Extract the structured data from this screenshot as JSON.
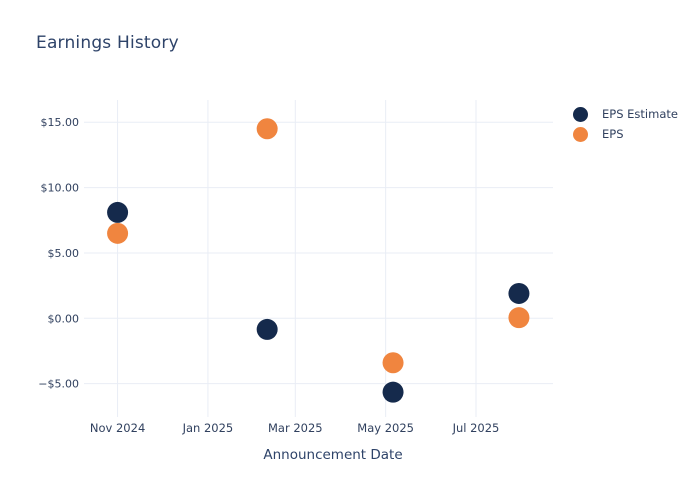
{
  "chart": {
    "title": "Earnings History",
    "xlabel": "Announcement Date"
  },
  "chart_data": {
    "type": "scatter",
    "title": "Earnings History",
    "xlabel": "Announcement Date",
    "ylabel": "",
    "legend_position": "right",
    "grid": true,
    "grid_color": "#e9edf5",
    "background_color": "#ffffff",
    "x_range": [
      "2024-10-10",
      "2025-08-22"
    ],
    "y_range": [
      -7.55,
      16.7
    ],
    "x_ticks": [
      {
        "date": "2024-11-01",
        "label": "Nov 2024"
      },
      {
        "date": "2025-01-01",
        "label": "Jan 2025"
      },
      {
        "date": "2025-03-01",
        "label": "Mar 2025"
      },
      {
        "date": "2025-05-01",
        "label": "May 2025"
      },
      {
        "date": "2025-07-01",
        "label": "Jul 2025"
      }
    ],
    "y_ticks": [
      {
        "value": 15,
        "label": "$15.00"
      },
      {
        "value": 10,
        "label": "$10.00"
      },
      {
        "value": 5,
        "label": "$5.00"
      },
      {
        "value": 0,
        "label": "$0.00"
      },
      {
        "value": -5,
        "label": "−$5.00"
      }
    ],
    "marker_diameter": 21,
    "series": [
      {
        "name": "EPS Estimate",
        "color": "#152a4c",
        "points": [
          {
            "date": "2024-11-01",
            "value": 8.1
          },
          {
            "date": "2025-02-10",
            "value": -0.85
          },
          {
            "date": "2025-05-06",
            "value": -5.65
          },
          {
            "date": "2025-07-30",
            "value": 1.9
          }
        ]
      },
      {
        "name": "EPS",
        "color": "#f0853f",
        "points": [
          {
            "date": "2024-11-01",
            "value": 6.5
          },
          {
            "date": "2025-02-10",
            "value": 14.5
          },
          {
            "date": "2025-05-06",
            "value": -3.4
          },
          {
            "date": "2025-07-30",
            "value": 0.05
          }
        ]
      }
    ]
  }
}
